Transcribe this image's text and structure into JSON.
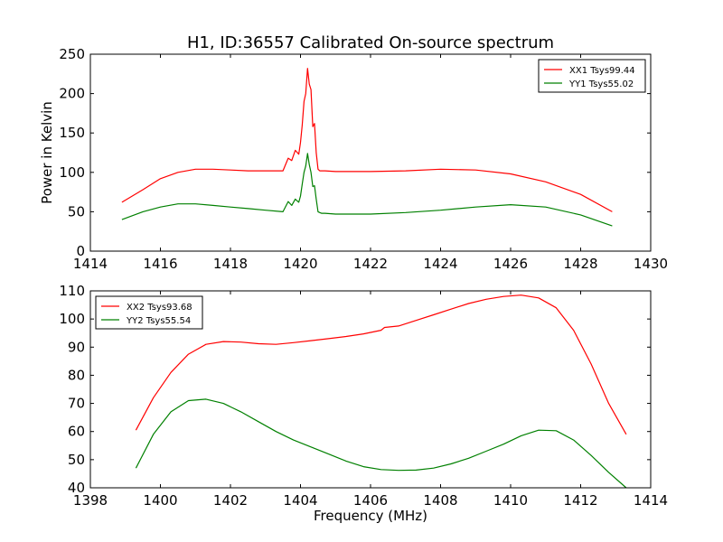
{
  "chart_data": [
    {
      "type": "line",
      "title": "H1, ID:36557 Calibrated On-source spectrum",
      "xlabel": "",
      "ylabel": "Power in Kelvin",
      "xlim": [
        1414,
        1430
      ],
      "ylim": [
        0,
        250
      ],
      "xticks": [
        1414,
        1416,
        1418,
        1420,
        1422,
        1424,
        1426,
        1428,
        1430
      ],
      "yticks": [
        0,
        50,
        100,
        150,
        200,
        250
      ],
      "grid": false,
      "legend_position": "top-right",
      "series": [
        {
          "name": "XX1 Tsys99.44",
          "color": "#ff0000",
          "x": [
            1414.9,
            1415.5,
            1416.0,
            1416.5,
            1417.0,
            1417.5,
            1418.0,
            1418.5,
            1419.0,
            1419.5,
            1419.65,
            1419.75,
            1419.85,
            1419.95,
            1420.0,
            1420.05,
            1420.1,
            1420.15,
            1420.2,
            1420.25,
            1420.3,
            1420.35,
            1420.4,
            1420.45,
            1420.5,
            1420.55,
            1420.6,
            1420.7,
            1421.0,
            1422.0,
            1423.0,
            1424.0,
            1425.0,
            1426.0,
            1427.0,
            1428.0,
            1428.9
          ],
          "y": [
            62,
            78,
            92,
            100,
            104,
            104,
            103,
            102,
            102,
            102,
            118,
            115,
            128,
            123,
            138,
            160,
            190,
            200,
            232,
            212,
            205,
            158,
            162,
            125,
            104,
            102,
            102,
            102,
            101,
            101,
            102,
            104,
            103,
            98,
            88,
            72,
            50
          ]
        },
        {
          "name": "YY1 Tsys55.02",
          "color": "#008000",
          "x": [
            1414.9,
            1415.5,
            1416.0,
            1416.5,
            1417.0,
            1417.5,
            1418.0,
            1418.5,
            1419.0,
            1419.5,
            1419.65,
            1419.75,
            1419.85,
            1419.95,
            1420.0,
            1420.05,
            1420.1,
            1420.15,
            1420.2,
            1420.25,
            1420.3,
            1420.35,
            1420.4,
            1420.45,
            1420.5,
            1420.55,
            1420.6,
            1420.7,
            1421.0,
            1422.0,
            1423.0,
            1424.0,
            1425.0,
            1426.0,
            1427.0,
            1428.0,
            1428.9
          ],
          "y": [
            40,
            50,
            56,
            60,
            60,
            58,
            56,
            54,
            52,
            50,
            63,
            58,
            66,
            62,
            70,
            85,
            100,
            108,
            124,
            110,
            100,
            82,
            83,
            66,
            50,
            49,
            48,
            48,
            47,
            47,
            49,
            52,
            56,
            59,
            56,
            46,
            32
          ]
        }
      ]
    },
    {
      "type": "line",
      "title": "",
      "xlabel": "Frequency (MHz)",
      "ylabel": "",
      "xlim": [
        1398,
        1414
      ],
      "ylim": [
        40,
        110
      ],
      "xticks": [
        1398,
        1400,
        1402,
        1404,
        1406,
        1408,
        1410,
        1412,
        1414
      ],
      "yticks": [
        40,
        50,
        60,
        70,
        80,
        90,
        100,
        110
      ],
      "grid": false,
      "legend_position": "top-left",
      "series": [
        {
          "name": "XX2 Tsys93.68",
          "color": "#ff0000",
          "x": [
            1399.3,
            1399.8,
            1400.3,
            1400.8,
            1401.3,
            1401.8,
            1402.3,
            1402.8,
            1403.3,
            1403.8,
            1404.3,
            1404.8,
            1405.3,
            1405.8,
            1406.3,
            1406.4,
            1406.8,
            1407.3,
            1407.8,
            1408.3,
            1408.8,
            1409.3,
            1409.8,
            1410.3,
            1410.8,
            1411.3,
            1411.8,
            1412.3,
            1412.8,
            1413.3
          ],
          "y": [
            60.5,
            72,
            81,
            87.5,
            91,
            92,
            91.8,
            91.2,
            91,
            91.6,
            92.3,
            93,
            93.8,
            94.7,
            96,
            97,
            97.5,
            99.5,
            101.5,
            103.5,
            105.5,
            107,
            108,
            108.5,
            107.5,
            104,
            96,
            84,
            70,
            59
          ]
        },
        {
          "name": "YY2 Tsys55.54",
          "color": "#008000",
          "x": [
            1399.3,
            1399.8,
            1400.3,
            1400.8,
            1401.3,
            1401.8,
            1402.3,
            1402.8,
            1403.3,
            1403.8,
            1404.3,
            1404.8,
            1405.3,
            1405.8,
            1406.3,
            1406.8,
            1407.3,
            1407.8,
            1408.3,
            1408.8,
            1409.3,
            1409.8,
            1410.3,
            1410.8,
            1411.3,
            1411.8,
            1412.3,
            1412.8,
            1413.3
          ],
          "y": [
            47,
            59,
            67,
            71,
            71.5,
            70,
            67,
            63.5,
            60,
            57,
            54.5,
            52,
            49.5,
            47.5,
            46.5,
            46.2,
            46.3,
            47,
            48.5,
            50.5,
            53,
            55.5,
            58.5,
            60.5,
            60.3,
            57,
            51.5,
            45.5,
            40
          ]
        }
      ]
    }
  ]
}
